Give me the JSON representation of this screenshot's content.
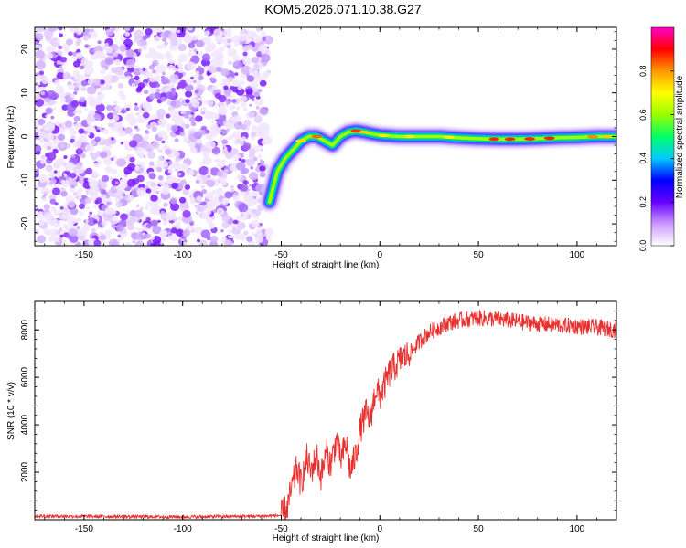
{
  "title": "KOM5.2026.071.10.38.G27",
  "colors": {
    "snr_line": "#e8312f",
    "text": "#000000",
    "background": "#ffffff"
  },
  "chart_data": [
    {
      "type": "heatmap",
      "name": "spectrogram",
      "xlabel": "Height of straight line (km)",
      "ylabel": "Frequency (Hz)",
      "xlim": [
        -175,
        120
      ],
      "ylim": [
        -25,
        25
      ],
      "xticks": [
        -150,
        -100,
        -50,
        0,
        50,
        100
      ],
      "yticks": [
        -20,
        -10,
        0,
        10,
        20
      ],
      "noise_region_x": [
        -175,
        -56
      ],
      "signal_track": {
        "x": [
          -56,
          -52,
          -48,
          -44,
          -40,
          -36,
          -32,
          -28,
          -24,
          -20,
          -16,
          -12,
          -8,
          -4,
          0,
          10,
          20,
          30,
          40,
          50,
          60,
          70,
          80,
          90,
          100,
          110,
          120
        ],
        "y": [
          -15,
          -8,
          -5,
          -3,
          -1,
          0,
          0,
          -1,
          -2,
          0,
          1,
          1.3,
          1,
          0.6,
          0.3,
          0,
          0,
          0,
          -0.3,
          -0.5,
          -0.6,
          -0.6,
          -0.5,
          -0.3,
          -0.2,
          0,
          0
        ]
      },
      "colorbar": {
        "label": "Normalized spectral amplitude",
        "range": [
          0,
          1
        ],
        "ticks": [
          "0.0",
          "0.2",
          "0.4",
          "0.6",
          "0.8"
        ],
        "colormap": [
          "#ffffff",
          "#cc99ff",
          "#6600ff",
          "#0000ff",
          "#00ccff",
          "#00ff66",
          "#99ff00",
          "#ffff00",
          "#ff9900",
          "#ff0000",
          "#ff00cc"
        ]
      }
    },
    {
      "type": "line",
      "name": "snr",
      "xlabel": "Height of straight line (km)",
      "ylabel": "SNR (10 * v/v)",
      "xlim": [
        -175,
        120
      ],
      "ylim": [
        0,
        9200
      ],
      "xticks": [
        -150,
        -100,
        -50,
        0,
        50,
        100
      ],
      "yticks": [
        2000,
        4000,
        6000,
        8000
      ],
      "series": [
        {
          "name": "SNR",
          "x": [
            -175,
            -100,
            -60,
            -50,
            -47,
            -45,
            -42,
            -40,
            -37,
            -35,
            -32,
            -30,
            -27,
            -25,
            -22,
            -20,
            -17,
            -15,
            -12,
            -10,
            -7,
            -5,
            -2,
            0,
            5,
            10,
            15,
            20,
            25,
            30,
            35,
            40,
            45,
            50,
            60,
            70,
            80,
            90,
            100,
            110,
            120
          ],
          "y": [
            150,
            120,
            150,
            180,
            500,
            1200,
            2200,
            1500,
            2600,
            2000,
            2700,
            1800,
            2800,
            2300,
            3400,
            2500,
            3200,
            2000,
            2800,
            3800,
            4500,
            4200,
            5500,
            5200,
            6200,
            6700,
            7000,
            7500,
            7900,
            8100,
            8300,
            8400,
            8450,
            8500,
            8450,
            8350,
            8250,
            8200,
            8150,
            8100,
            8000
          ]
        }
      ]
    }
  ]
}
